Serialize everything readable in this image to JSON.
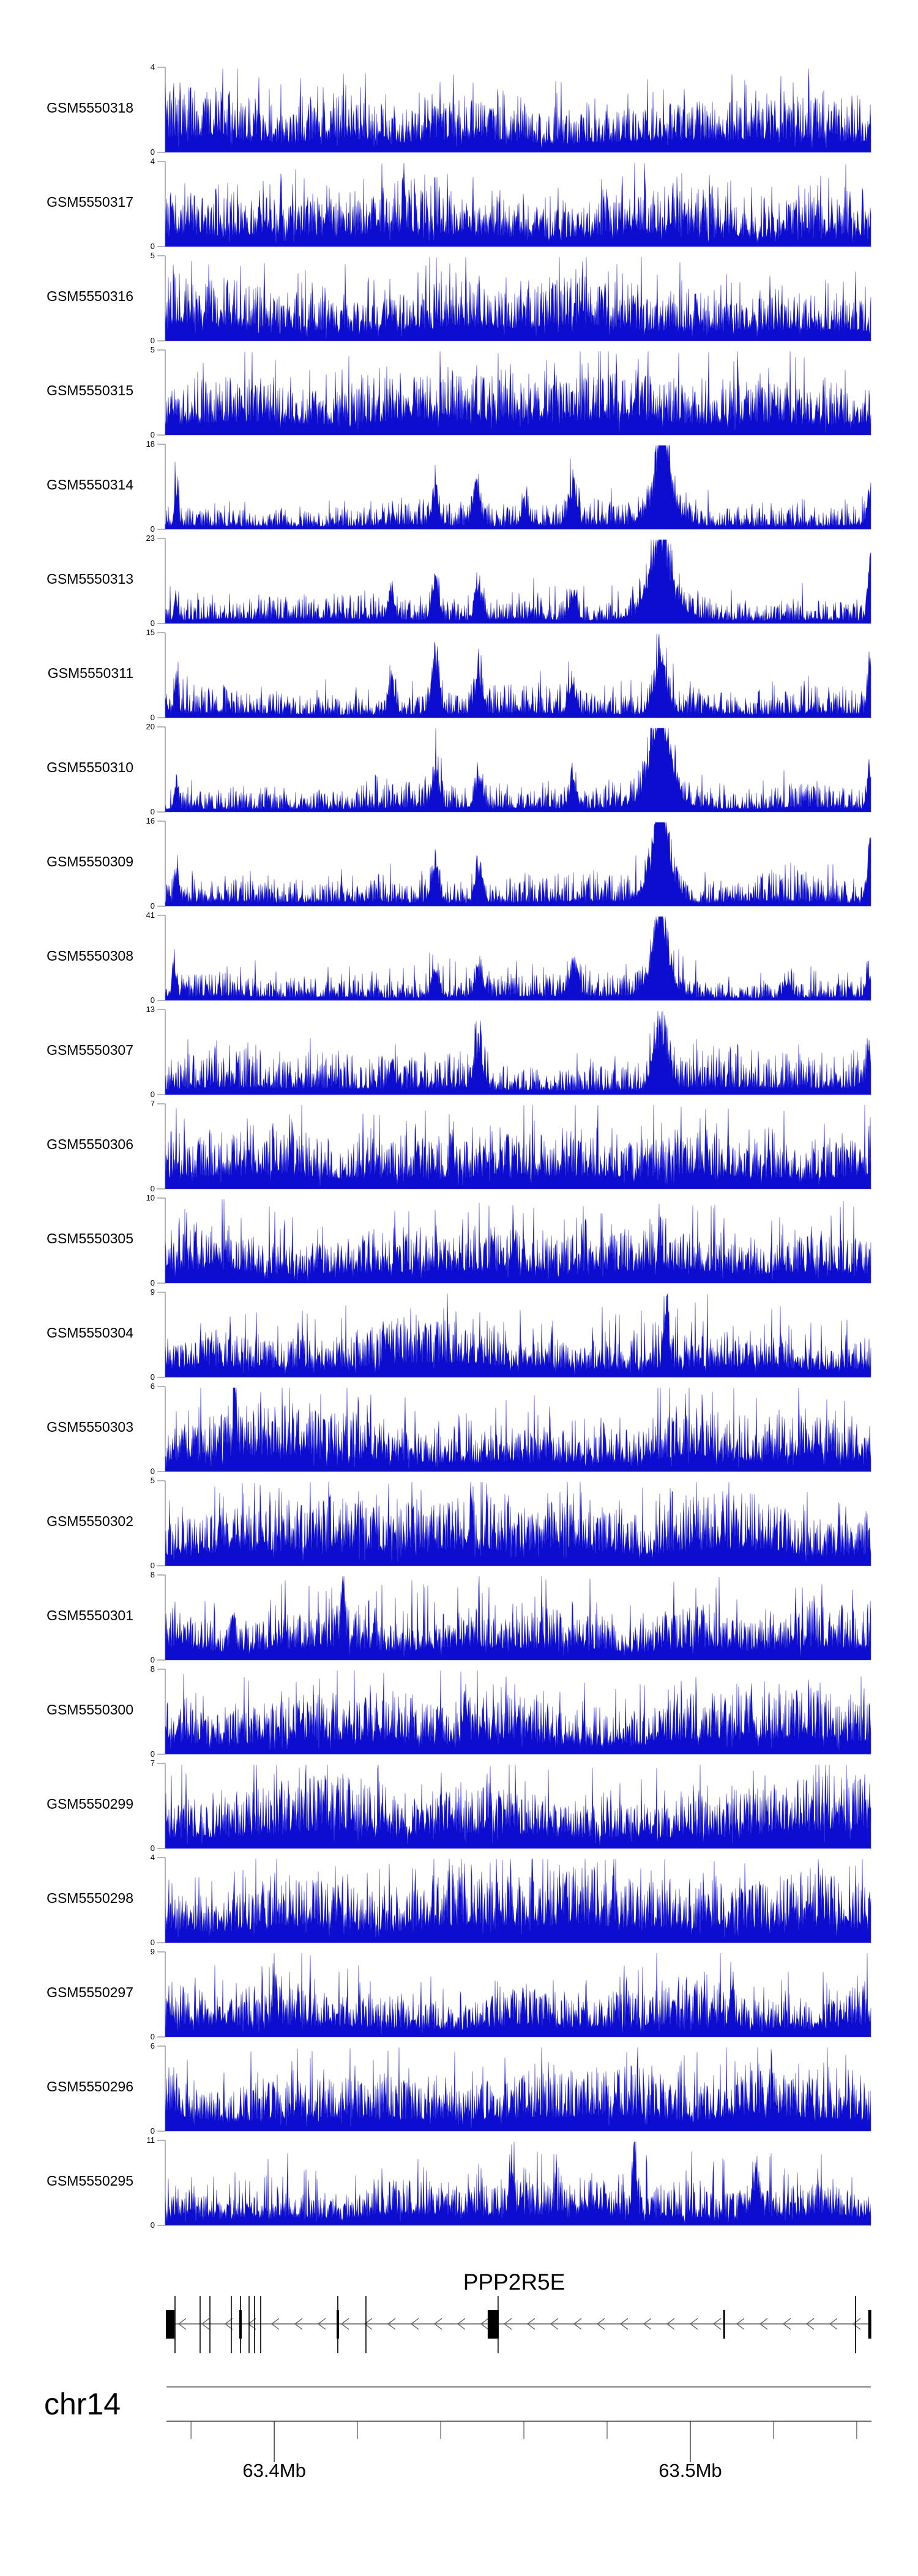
{
  "chart_data": {
    "type": "area",
    "title": "",
    "layout_hints": {
      "grid": false,
      "stacked_tracks": true,
      "legend": "none",
      "signal_fill": "#0d0dd0"
    },
    "region": {
      "chromosome": "chr14",
      "start_mb": 63.3738,
      "end_mb": 63.5434,
      "unit": "Mb"
    },
    "y_axis": {
      "ymin": 0,
      "zero_label": "0"
    },
    "x_axis": {
      "major_ticks": [
        {
          "mb": 63.4,
          "label": "63.4Mb"
        },
        {
          "mb": 63.5,
          "label": "63.5Mb"
        }
      ],
      "minor_ticks_mb": [
        63.38,
        63.42,
        63.44,
        63.46,
        63.48,
        63.52,
        63.54
      ]
    },
    "tracks": [
      {
        "name": "GSM5550318",
        "ymax": 4,
        "profile": "dense",
        "noise": 0.46,
        "seed": 3,
        "peaks": []
      },
      {
        "name": "GSM5550317",
        "ymax": 4,
        "profile": "dense",
        "noise": 0.5,
        "seed": 5,
        "peaks": []
      },
      {
        "name": "GSM5550316",
        "ymax": 5,
        "profile": "dense",
        "noise": 0.52,
        "seed": 7,
        "peaks": []
      },
      {
        "name": "GSM5550315",
        "ymax": 5,
        "profile": "dense",
        "noise": 0.54,
        "seed": 9,
        "peaks": []
      },
      {
        "name": "GSM5550314",
        "ymax": 18,
        "profile": "peaked",
        "noise": 0.3,
        "seed": 11,
        "peaks": [
          {
            "mb": 63.3765,
            "h": 0.55,
            "w": 3
          },
          {
            "mb": 63.4387,
            "h": 0.5,
            "w": 5
          },
          {
            "mb": 63.4485,
            "h": 0.6,
            "w": 6
          },
          {
            "mb": 63.4601,
            "h": 0.3,
            "w": 5
          },
          {
            "mb": 63.4718,
            "h": 0.55,
            "w": 6
          },
          {
            "mb": 63.4934,
            "h": 1.0,
            "w": 9
          },
          {
            "mb": 63.4934,
            "h": 0.45,
            "w": 22
          },
          {
            "mb": 63.543,
            "h": 0.35,
            "w": 4
          }
        ]
      },
      {
        "name": "GSM5550313",
        "ymax": 23,
        "profile": "peaked",
        "noise": 0.28,
        "seed": 13,
        "peaks": [
          {
            "mb": 63.3765,
            "h": 0.3,
            "w": 3
          },
          {
            "mb": 63.4282,
            "h": 0.35,
            "w": 5
          },
          {
            "mb": 63.4387,
            "h": 0.5,
            "w": 6
          },
          {
            "mb": 63.4491,
            "h": 0.45,
            "w": 6
          },
          {
            "mb": 63.4718,
            "h": 0.35,
            "w": 6
          },
          {
            "mb": 63.4928,
            "h": 0.95,
            "w": 12
          },
          {
            "mb": 63.4928,
            "h": 0.45,
            "w": 26
          },
          {
            "mb": 63.5433,
            "h": 0.88,
            "w": 4
          }
        ]
      },
      {
        "name": "GSM5550311",
        "ymax": 15,
        "profile": "peaked",
        "noise": 0.34,
        "seed": 15,
        "peaks": [
          {
            "mb": 63.3765,
            "h": 0.4,
            "w": 3
          },
          {
            "mb": 63.4282,
            "h": 0.45,
            "w": 5
          },
          {
            "mb": 63.4387,
            "h": 0.88,
            "w": 6
          },
          {
            "mb": 63.4491,
            "h": 0.5,
            "w": 6
          },
          {
            "mb": 63.4718,
            "h": 0.4,
            "w": 6
          },
          {
            "mb": 63.4928,
            "h": 0.72,
            "w": 11
          },
          {
            "mb": 63.5433,
            "h": 0.8,
            "w": 4
          }
        ]
      },
      {
        "name": "GSM5550310",
        "ymax": 20,
        "profile": "peaked",
        "noise": 0.3,
        "seed": 17,
        "peaks": [
          {
            "mb": 63.3765,
            "h": 0.35,
            "w": 3
          },
          {
            "mb": 63.4387,
            "h": 0.5,
            "w": 6
          },
          {
            "mb": 63.4491,
            "h": 0.45,
            "w": 6
          },
          {
            "mb": 63.4718,
            "h": 0.35,
            "w": 6
          },
          {
            "mb": 63.4928,
            "h": 1.0,
            "w": 12
          },
          {
            "mb": 63.4928,
            "h": 0.5,
            "w": 24
          },
          {
            "mb": 63.543,
            "h": 0.5,
            "w": 4
          }
        ]
      },
      {
        "name": "GSM5550309",
        "ymax": 16,
        "profile": "peaked",
        "noise": 0.32,
        "seed": 19,
        "peaks": [
          {
            "mb": 63.3765,
            "h": 0.4,
            "w": 3
          },
          {
            "mb": 63.4387,
            "h": 0.55,
            "w": 6
          },
          {
            "mb": 63.4491,
            "h": 0.5,
            "w": 6
          },
          {
            "mb": 63.4928,
            "h": 0.95,
            "w": 11
          },
          {
            "mb": 63.4928,
            "h": 0.45,
            "w": 22
          },
          {
            "mb": 63.5433,
            "h": 0.85,
            "w": 4
          }
        ]
      },
      {
        "name": "GSM5550308",
        "ymax": 41,
        "profile": "peaked",
        "noise": 0.26,
        "seed": 21,
        "peaks": [
          {
            "mb": 63.3759,
            "h": 0.42,
            "w": 3
          },
          {
            "mb": 63.4387,
            "h": 0.36,
            "w": 6
          },
          {
            "mb": 63.4491,
            "h": 0.42,
            "w": 6
          },
          {
            "mb": 63.4718,
            "h": 0.48,
            "w": 7
          },
          {
            "mb": 63.4928,
            "h": 1.0,
            "w": 9
          },
          {
            "mb": 63.4928,
            "h": 0.45,
            "w": 20
          },
          {
            "mb": 63.5235,
            "h": 0.2,
            "w": 6
          },
          {
            "mb": 63.5428,
            "h": 0.32,
            "w": 4
          }
        ]
      },
      {
        "name": "GSM5550307",
        "ymax": 13,
        "profile": "peaked",
        "noise": 0.48,
        "seed": 23,
        "peaks": [
          {
            "mb": 63.4282,
            "h": 0.35,
            "w": 5
          },
          {
            "mb": 63.4491,
            "h": 0.6,
            "w": 7
          },
          {
            "mb": 63.4928,
            "h": 0.88,
            "w": 11
          },
          {
            "mb": 63.5428,
            "h": 0.4,
            "w": 4
          }
        ]
      },
      {
        "name": "GSM5550306",
        "ymax": 7,
        "profile": "dense",
        "noise": 0.5,
        "seed": 25,
        "peaks": []
      },
      {
        "name": "GSM5550305",
        "ymax": 10,
        "profile": "dense",
        "noise": 0.4,
        "seed": 27,
        "peaks": [
          {
            "mb": 63.4575,
            "h": 0.5,
            "w": 3
          },
          {
            "mb": 63.4928,
            "h": 0.55,
            "w": 3
          }
        ]
      },
      {
        "name": "GSM5550304",
        "ymax": 9,
        "profile": "dense",
        "noise": 0.44,
        "seed": 29,
        "peaks": [
          {
            "mb": 63.4944,
            "h": 0.9,
            "w": 3
          }
        ]
      },
      {
        "name": "GSM5550303",
        "ymax": 6,
        "profile": "dense",
        "noise": 0.5,
        "seed": 31,
        "peaks": [
          {
            "mb": 63.3905,
            "h": 0.85,
            "w": 3
          }
        ]
      },
      {
        "name": "GSM5550302",
        "ymax": 5,
        "profile": "dense",
        "noise": 0.54,
        "seed": 33,
        "peaks": []
      },
      {
        "name": "GSM5550301",
        "ymax": 8,
        "profile": "dense",
        "noise": 0.42,
        "seed": 35,
        "peaks": [
          {
            "mb": 63.39,
            "h": 0.5,
            "w": 3
          },
          {
            "mb": 63.4165,
            "h": 0.85,
            "w": 3
          }
        ]
      },
      {
        "name": "GSM5550300",
        "ymax": 8,
        "profile": "dense",
        "noise": 0.5,
        "seed": 37,
        "peaks": [
          {
            "mb": 63.4459,
            "h": 0.6,
            "w": 3
          }
        ]
      },
      {
        "name": "GSM5550299",
        "ymax": 7,
        "profile": "dense",
        "noise": 0.56,
        "seed": 39,
        "peaks": []
      },
      {
        "name": "GSM5550298",
        "ymax": 4,
        "profile": "dense",
        "noise": 0.58,
        "seed": 41,
        "peaks": []
      },
      {
        "name": "GSM5550297",
        "ymax": 9,
        "profile": "dense",
        "noise": 0.42,
        "seed": 43,
        "peaks": [
          {
            "mb": 63.4,
            "h": 0.55,
            "w": 3
          },
          {
            "mb": 63.51,
            "h": 0.5,
            "w": 3
          }
        ]
      },
      {
        "name": "GSM5550296",
        "ymax": 6,
        "profile": "dense",
        "noise": 0.52,
        "seed": 45,
        "peaks": []
      },
      {
        "name": "GSM5550295",
        "ymax": 11,
        "profile": "dense",
        "noise": 0.4,
        "seed": 47,
        "peaks": [
          {
            "mb": 63.457,
            "h": 0.6,
            "w": 4
          },
          {
            "mb": 63.4866,
            "h": 0.95,
            "w": 3
          },
          {
            "mb": 63.516,
            "h": 0.5,
            "w": 6
          }
        ]
      }
    ],
    "gene_track": {
      "gene": "PPP2R5E",
      "strand": "reverse",
      "exon_boxes_mb": [
        [
          63.37395,
          63.37601
        ],
        [
          63.3916,
          63.39218
        ],
        [
          63.41498,
          63.41557
        ],
        [
          63.4513,
          63.45395
        ],
        [
          63.50791,
          63.50835
        ],
        [
          63.54276,
          63.54349
        ]
      ],
      "exon_lines_mb": [
        63.37615,
        63.38218,
        63.38454,
        63.38968,
        63.39189,
        63.39395,
        63.39527,
        63.39674,
        63.41527,
        63.42204,
        63.4538,
        63.53969
      ]
    }
  },
  "colors": {
    "signal": "#0d0dd0",
    "signal_edge": "#4646dd",
    "track_axis": "#8c8c8c",
    "genome_axis": "#3c3c3c",
    "gene_line": "#878787",
    "arrow": "#606060",
    "exon": "#000000",
    "text": "#000000"
  }
}
